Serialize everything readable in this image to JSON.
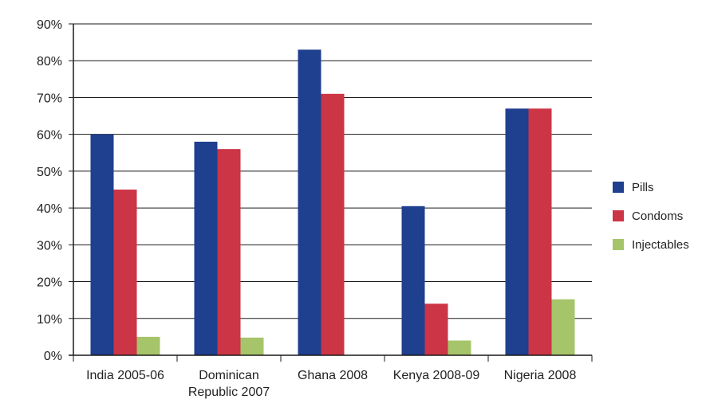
{
  "chart_data": {
    "type": "bar",
    "categories": [
      "India 2005-06",
      "Dominican Republic 2007",
      "Ghana 2008",
      "Kenya 2008-09",
      "Nigeria 2008"
    ],
    "category_label_lines": [
      [
        "India 2005-06"
      ],
      [
        "Dominican",
        "Republic 2007"
      ],
      [
        "Ghana 2008"
      ],
      [
        "Kenya 2008-09"
      ],
      [
        "Nigeria 2008"
      ]
    ],
    "series": [
      {
        "name": "Pills",
        "color": "#1f3f8f",
        "values": [
          60,
          58,
          83,
          40.5,
          67
        ]
      },
      {
        "name": "Condoms",
        "color": "#cc3545",
        "values": [
          45,
          56,
          71,
          14,
          67
        ]
      },
      {
        "name": "Injectables",
        "color": "#a6c46a",
        "values": [
          5,
          4.8,
          0,
          4,
          15.2
        ]
      }
    ],
    "ylim": [
      0,
      90
    ],
    "y_ticks": [
      0,
      10,
      20,
      30,
      40,
      50,
      60,
      70,
      80,
      90
    ],
    "y_tick_labels": [
      "0%",
      "10%",
      "20%",
      "30%",
      "40%",
      "50%",
      "60%",
      "70%",
      "80%",
      "90%"
    ],
    "grid": true,
    "legend_position": "right",
    "title": "",
    "xlabel": "",
    "ylabel": ""
  }
}
